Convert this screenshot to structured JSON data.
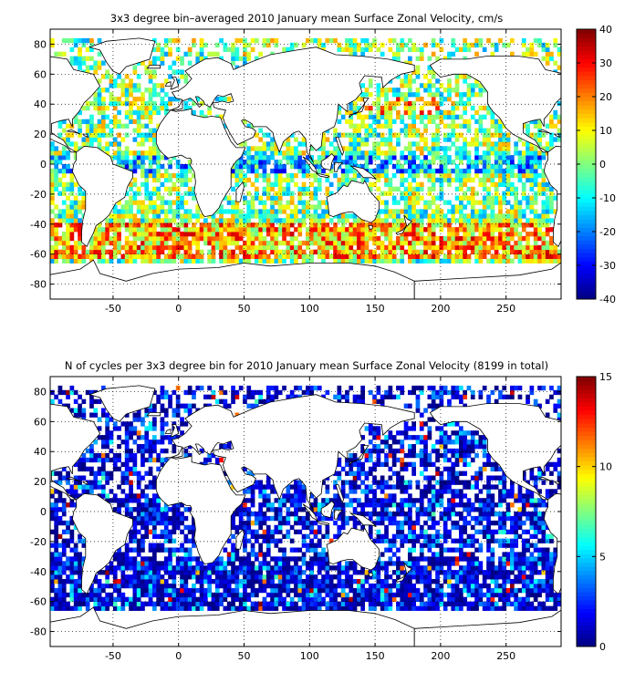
{
  "chart_data": [
    {
      "type": "heatmap",
      "title": "3x3 degree bin–averaged 2010 January mean Surface Zonal Velocity, cm/s",
      "xlim": [
        -98,
        292
      ],
      "ylim": [
        -90,
        90
      ],
      "xticks": [
        -50,
        0,
        50,
        100,
        150,
        200,
        250
      ],
      "yticks": [
        80,
        60,
        40,
        20,
        0,
        -20,
        -40,
        -60,
        -80
      ],
      "xticklabels": [
        "-50",
        "0",
        "50",
        "100",
        "150",
        "200",
        "250"
      ],
      "yticklabels": [
        "80",
        "60",
        "40",
        "20",
        "0",
        "-20",
        "-40",
        "-60",
        "-80"
      ],
      "colorbar": {
        "colormap": "jet",
        "range": [
          -40,
          40
        ],
        "ticks": [
          "40",
          "30",
          "20",
          "10",
          "0",
          "-10",
          "-20",
          "-30",
          "-40"
        ]
      },
      "grid": "dotted",
      "bin_size_deg": 3
    },
    {
      "type": "heatmap",
      "title": "N of cycles per 3x3 degree bin for 2010 January mean Surface Zonal Velocity (8199 in total)",
      "xlim": [
        -98,
        292
      ],
      "ylim": [
        -90,
        90
      ],
      "xticks": [
        -50,
        0,
        50,
        100,
        150,
        200,
        250
      ],
      "yticks": [
        80,
        60,
        40,
        20,
        0,
        -20,
        -40,
        -60,
        -80
      ],
      "xticklabels": [
        "-50",
        "0",
        "50",
        "100",
        "150",
        "200",
        "250"
      ],
      "yticklabels": [
        "80",
        "60",
        "40",
        "20",
        "0",
        "-20",
        "-40",
        "-60",
        "-80"
      ],
      "colorbar": {
        "colormap": "jet",
        "range": [
          0,
          15
        ],
        "ticks": [
          "15",
          "10",
          "5",
          "0"
        ]
      },
      "grid": "dotted",
      "bin_size_deg": 3
    }
  ]
}
